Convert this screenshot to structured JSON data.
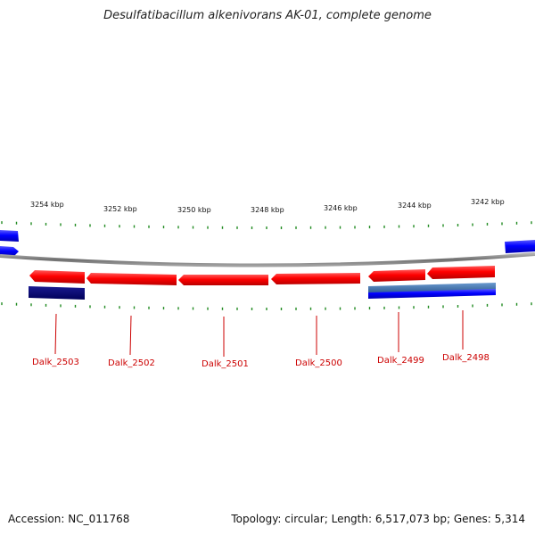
{
  "title": "Desulfatibacillum alkenivorans AK-01, complete genome",
  "footer": {
    "accession_label": "Accession:",
    "accession": "NC_011768",
    "topology_label": "Topology:",
    "topology": "circular",
    "length_label": "Length:",
    "length": "6,517,073 bp",
    "genes_label": "Genes:",
    "genes": "5,314"
  },
  "colors": {
    "forward_gene": "#ff0000",
    "reverse_gene": "#0000ff",
    "tick": "#228b22",
    "backbone": "#7f7f7f",
    "gene_label": "#cc0000",
    "dark_feature": "#00007a",
    "steel_feature": "#3a6fa8"
  },
  "scale_labels": [
    {
      "text": "3254 kbp",
      "kbp": 3254
    },
    {
      "text": "3252 kbp",
      "kbp": 3252
    },
    {
      "text": "3250 kbp",
      "kbp": 3250
    },
    {
      "text": "3248 kbp",
      "kbp": 3248
    },
    {
      "text": "3246 kbp",
      "kbp": 3246
    },
    {
      "text": "3244 kbp",
      "kbp": 3244
    },
    {
      "text": "3242 kbp",
      "kbp": 3242
    }
  ],
  "genes": [
    {
      "label": "Dalk_2503",
      "track": "forward"
    },
    {
      "label": "Dalk_2502",
      "track": "forward"
    },
    {
      "label": "Dalk_2501",
      "track": "forward"
    },
    {
      "label": "Dalk_2500",
      "track": "forward"
    },
    {
      "label": "Dalk_2499",
      "track": "forward"
    },
    {
      "label": "Dalk_2498",
      "track": "forward"
    }
  ]
}
